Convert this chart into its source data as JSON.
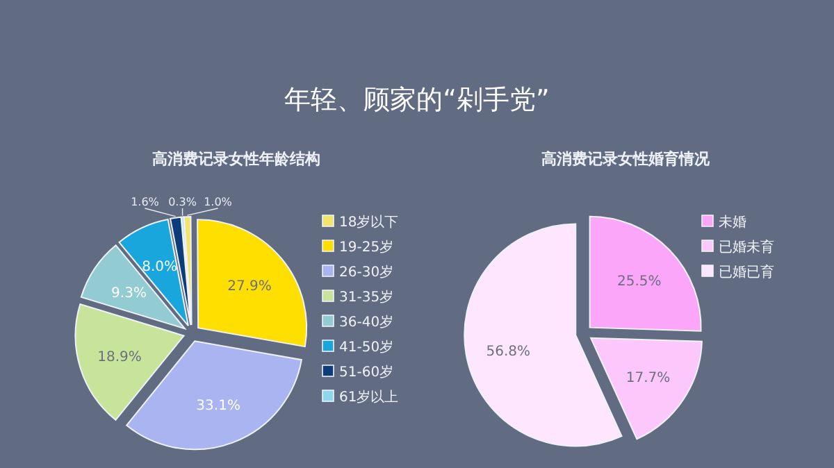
{
  "chart_data": [
    {
      "type": "pie",
      "title": "高消费记录女性年龄结构",
      "annotations": [
        "年轻、顾家的“剁手党”"
      ],
      "legend": "right",
      "categories": [
        "18岁以下",
        "19-25岁",
        "26-30岁",
        "31-35岁",
        "36-40岁",
        "41-50岁",
        "51-60岁",
        "61岁以上"
      ],
      "values": [
        1.0,
        27.9,
        33.1,
        18.9,
        9.3,
        8.0,
        1.6,
        0.3
      ],
      "value_labels": [
        "1.0%",
        "27.9%",
        "33.1%",
        "18.9%",
        "9.3%",
        "8.0%",
        "1.6%",
        "0.3%"
      ],
      "colors": [
        "#f3e46e",
        "#ffdf00",
        "#aab4f0",
        "#c8e49a",
        "#93cbd3",
        "#18a6dc",
        "#0c3d78",
        "#8dd6ee"
      ]
    },
    {
      "type": "pie",
      "title": "高消费记录女性婚育情况",
      "legend": "right",
      "categories": [
        "未婚",
        "已婚未育",
        "已婚已育"
      ],
      "values": [
        25.5,
        17.7,
        56.8
      ],
      "value_labels": [
        "25.5%",
        "17.7%",
        "56.8%"
      ],
      "colors": [
        "#fca6fa",
        "#fcc8fb",
        "#fee6fe"
      ]
    }
  ]
}
